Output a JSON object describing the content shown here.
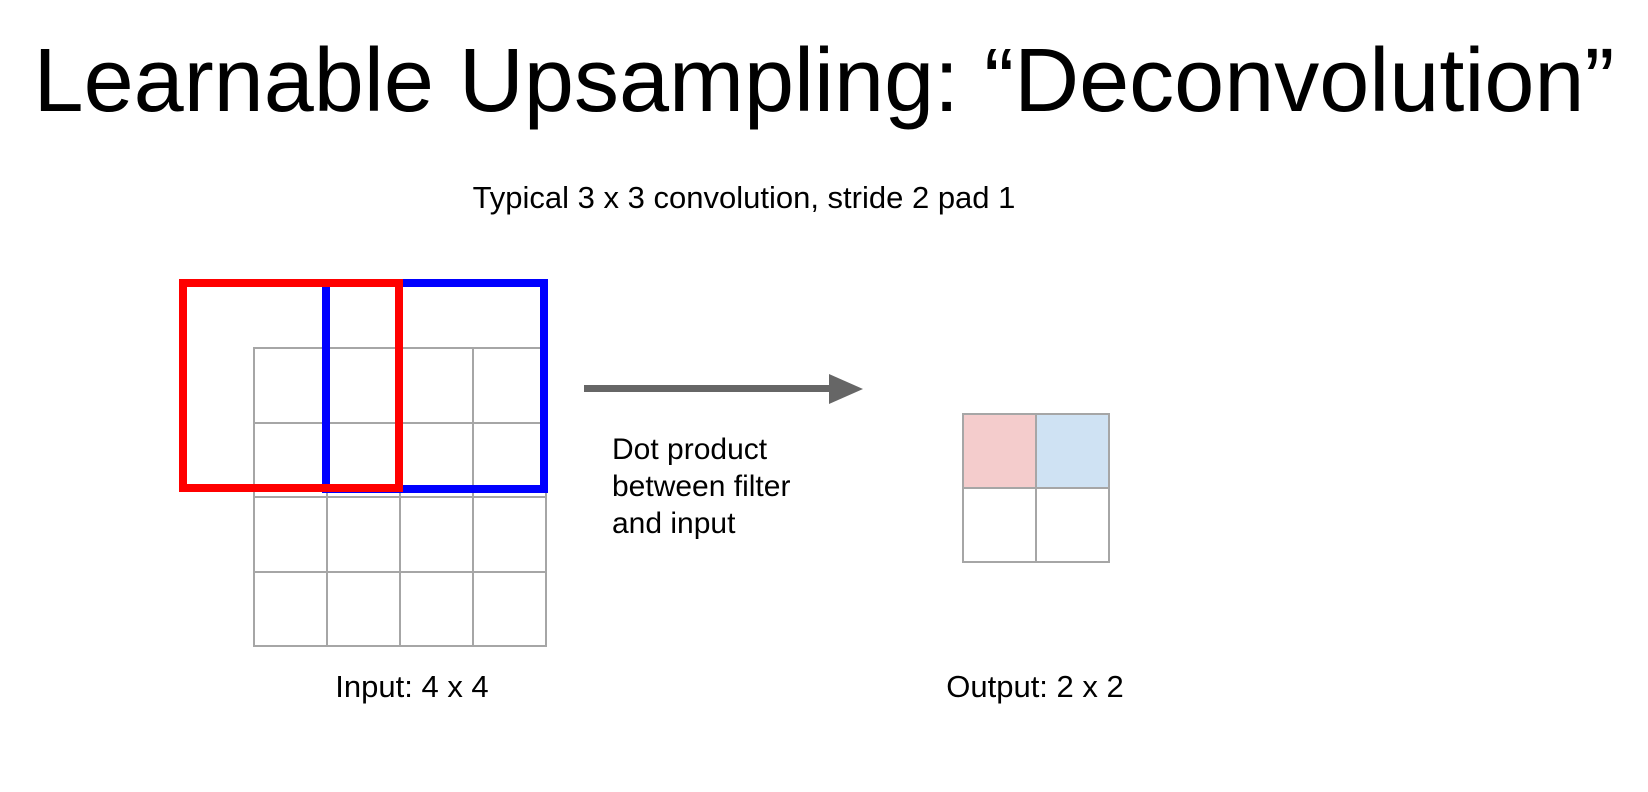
{
  "slide": {
    "title": "Learnable Upsampling: “Deconvolution”",
    "subtitle": "Typical 3 x 3 convolution, stride 2 pad 1"
  },
  "diagram": {
    "arrow_label": "Dot product\nbetween filter\nand input",
    "input": {
      "label": "Input: 4 x 4",
      "rows": 4,
      "cols": 4
    },
    "output": {
      "label": "Output: 2 x 2",
      "rows": 2,
      "cols": 2,
      "filled_cells": [
        {
          "row": 0,
          "col": 0,
          "fill": "#f4cccc",
          "meaning": "red filter result"
        },
        {
          "row": 0,
          "col": 1,
          "fill": "#cfe2f3",
          "meaning": "blue filter result"
        }
      ]
    },
    "filters": [
      {
        "name": "red filter window",
        "size": "3 x 3",
        "stroke": "#ff0000"
      },
      {
        "name": "blue filter window",
        "size": "3 x 3",
        "stroke": "#0000ff"
      }
    ]
  },
  "colors": {
    "filter_red": "#ff0000",
    "filter_blue": "#0000ff",
    "filter_red_fill": "#f4cccc",
    "filter_blue_fill": "#cfe2f3",
    "grid_line": "#a6a6a6",
    "arrow": "#666666",
    "text": "#000000",
    "background": "#ffffff"
  }
}
